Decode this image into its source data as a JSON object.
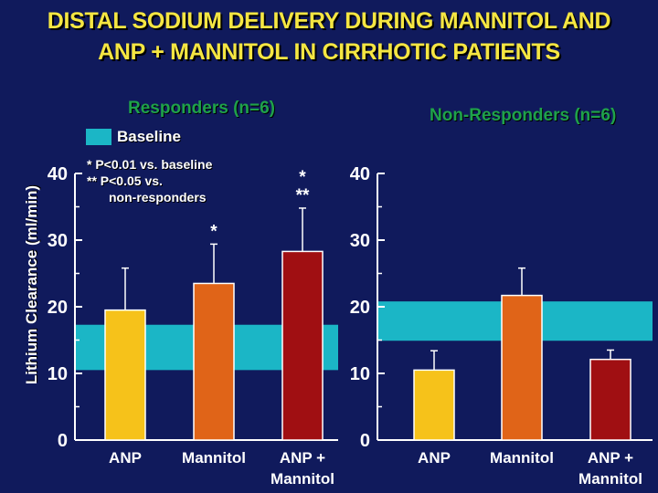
{
  "title_lines": [
    "DISTAL SODIUM DELIVERY DURING MANNITOL AND",
    "ANP + MANNITOL IN CIRRHOTIC PATIENTS"
  ],
  "legend": {
    "baseline_label": "Baseline"
  },
  "notes": {
    "line1": "*   P<0.01 vs. baseline",
    "line2": "**  P<0.05 vs.",
    "line3": "non-responders"
  },
  "colors": {
    "background": "#101a5c",
    "baseline_band": "#1bb6c6",
    "bars": [
      "#f6c21a",
      "#e06418",
      "#a00f12"
    ],
    "title": "#f5e642",
    "panel_title": "#1fa24a"
  },
  "chart_data": [
    {
      "type": "bar",
      "title": "Responders (n=6)",
      "ylabel": "Lithium Clearance (ml/min)",
      "ylim": [
        0,
        40
      ],
      "yticks": [
        "0",
        "10",
        "20",
        "30",
        "40"
      ],
      "categories": [
        [
          "ANP"
        ],
        [
          "Mannitol"
        ],
        [
          "ANP +",
          "Mannitol"
        ]
      ],
      "values": [
        19.5,
        23.5,
        28.3
      ],
      "errors": [
        6.3,
        5.9,
        6.5
      ],
      "significance": [
        "",
        "*",
        "*\n**"
      ],
      "baseline_band": [
        10.5,
        17.3
      ]
    },
    {
      "type": "bar",
      "title": "Non-Responders (n=6)",
      "ylabel": "",
      "ylim": [
        0,
        40
      ],
      "yticks": [
        "0",
        "10",
        "20",
        "30",
        "40"
      ],
      "categories": [
        [
          "ANP"
        ],
        [
          "Mannitol"
        ],
        [
          "ANP +",
          "Mannitol"
        ]
      ],
      "values": [
        10.5,
        21.7,
        12.1
      ],
      "errors": [
        2.9,
        4.1,
        1.4
      ],
      "significance": [
        "",
        "",
        ""
      ],
      "baseline_band": [
        14.9,
        20.8
      ]
    }
  ]
}
